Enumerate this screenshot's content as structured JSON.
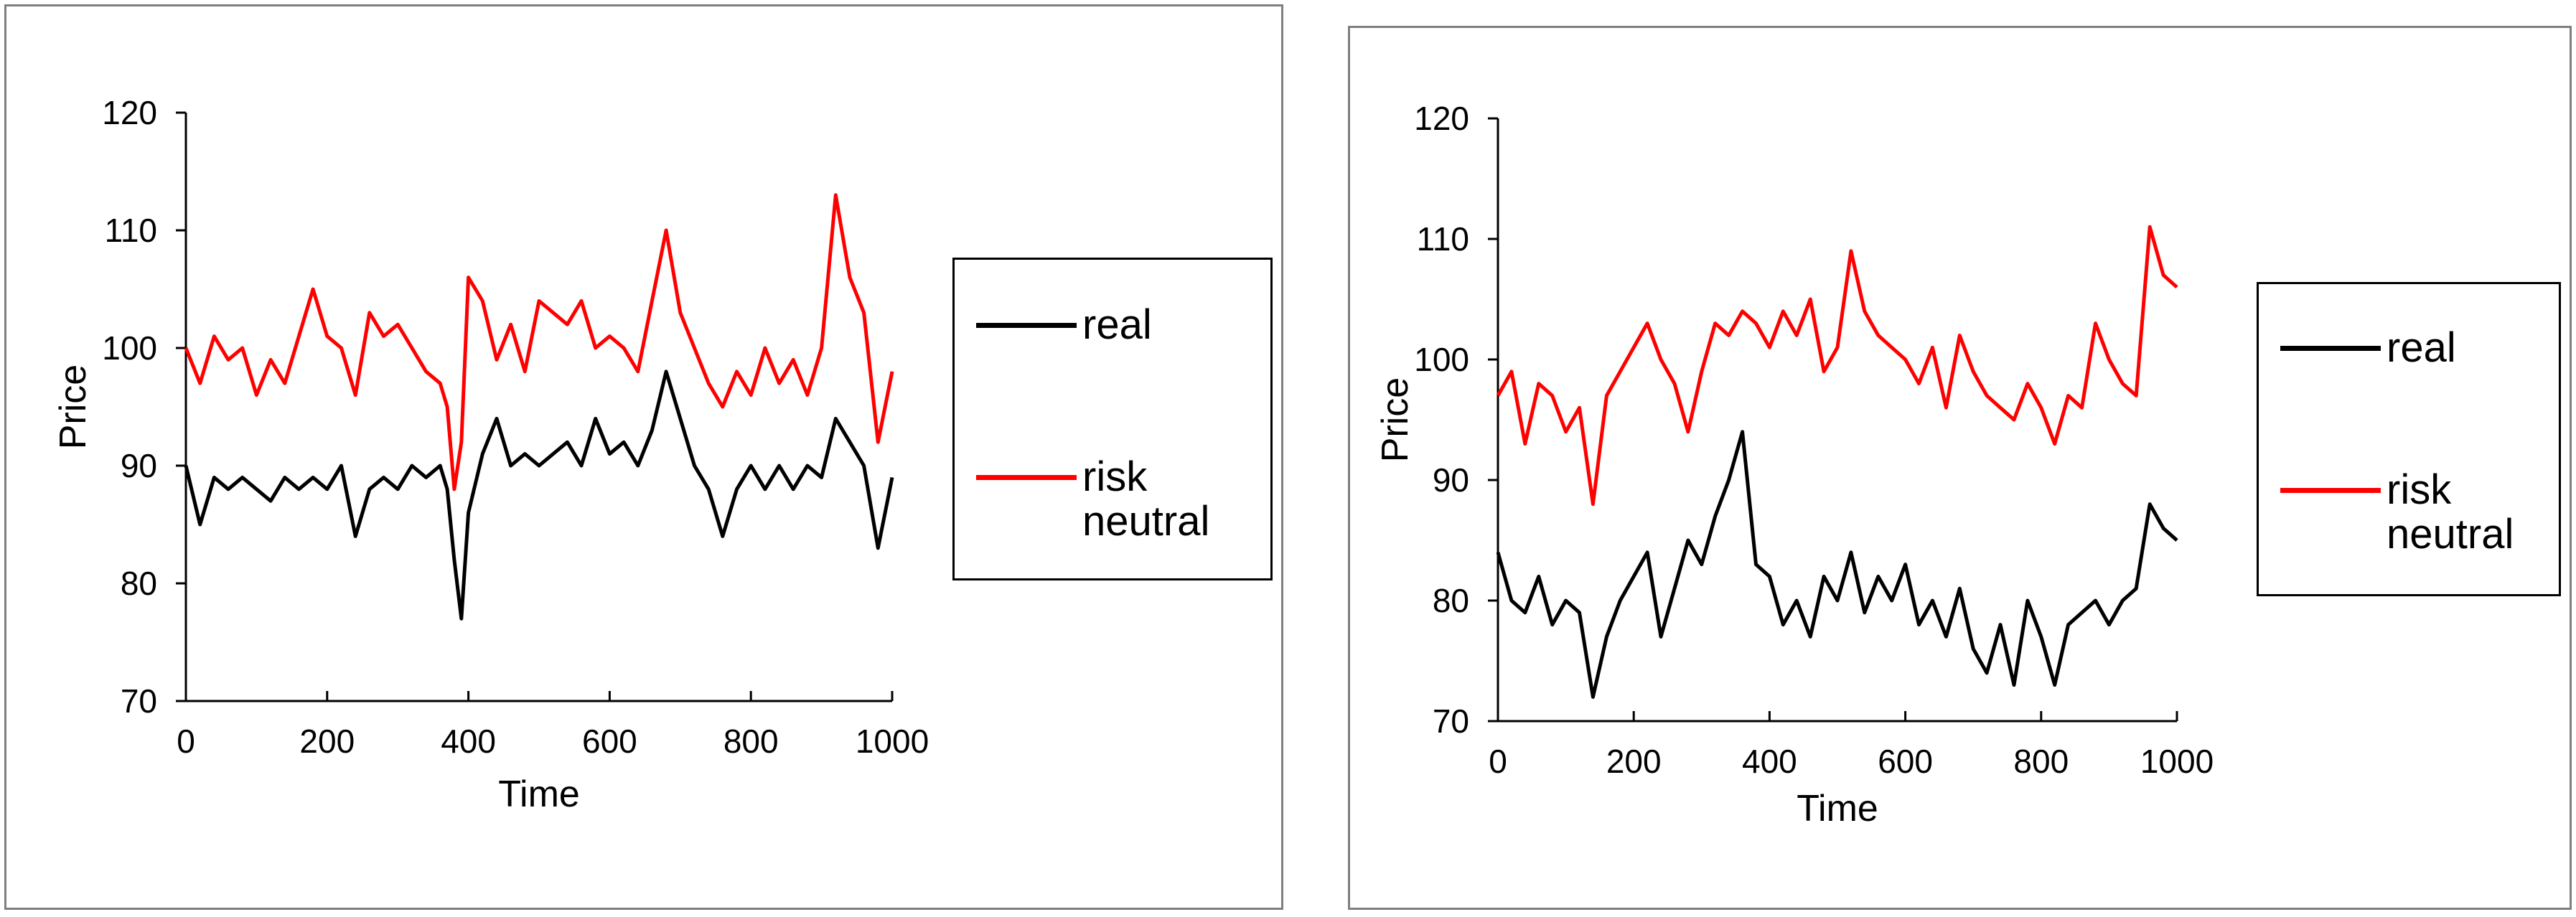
{
  "chart_data": [
    {
      "type": "line",
      "xlabel": "Time",
      "ylabel": "Price",
      "xlim": [
        0,
        1000
      ],
      "ylim": [
        70,
        120
      ],
      "x_ticks": [
        "0",
        "200",
        "400",
        "600",
        "800",
        "1000"
      ],
      "y_ticks": [
        "70",
        "80",
        "90",
        "100",
        "110",
        "120"
      ],
      "grid": false,
      "legend_position": "right",
      "series": [
        {
          "name": "real",
          "color": "#000000",
          "x": [
            0,
            20,
            40,
            60,
            80,
            100,
            120,
            140,
            160,
            180,
            200,
            220,
            240,
            260,
            280,
            300,
            320,
            340,
            360,
            370,
            380,
            390,
            400,
            420,
            440,
            460,
            480,
            500,
            520,
            540,
            560,
            580,
            600,
            620,
            640,
            660,
            680,
            700,
            720,
            740,
            760,
            780,
            800,
            820,
            840,
            860,
            880,
            900,
            920,
            940,
            960,
            980,
            1000
          ],
          "y": [
            90,
            85,
            89,
            88,
            89,
            88,
            87,
            89,
            88,
            89,
            88,
            90,
            84,
            88,
            89,
            88,
            90,
            89,
            90,
            88,
            82,
            77,
            86,
            91,
            94,
            90,
            91,
            90,
            91,
            92,
            90,
            94,
            91,
            92,
            90,
            93,
            98,
            94,
            90,
            88,
            84,
            88,
            90,
            88,
            90,
            88,
            90,
            89,
            94,
            92,
            90,
            83,
            89
          ]
        },
        {
          "name": "risk neutral",
          "color": "#ff0000",
          "x": [
            0,
            20,
            40,
            60,
            80,
            100,
            120,
            140,
            160,
            180,
            200,
            220,
            240,
            260,
            280,
            300,
            320,
            340,
            360,
            370,
            380,
            390,
            400,
            420,
            440,
            460,
            480,
            500,
            520,
            540,
            560,
            580,
            600,
            620,
            640,
            660,
            680,
            700,
            720,
            740,
            760,
            780,
            800,
            820,
            840,
            860,
            880,
            900,
            920,
            940,
            960,
            980,
            1000
          ],
          "y": [
            100,
            97,
            101,
            99,
            100,
            96,
            99,
            97,
            101,
            105,
            101,
            100,
            96,
            103,
            101,
            102,
            100,
            98,
            97,
            95,
            88,
            92,
            106,
            104,
            99,
            102,
            98,
            104,
            103,
            102,
            104,
            100,
            101,
            100,
            98,
            104,
            110,
            103,
            100,
            97,
            95,
            98,
            96,
            100,
            97,
            99,
            96,
            100,
            113,
            106,
            103,
            92,
            98
          ]
        }
      ]
    },
    {
      "type": "line",
      "xlabel": "Time",
      "ylabel": "Price",
      "xlim": [
        0,
        1000
      ],
      "ylim": [
        70,
        120
      ],
      "x_ticks": [
        "0",
        "200",
        "400",
        "600",
        "800",
        "1000"
      ],
      "y_ticks": [
        "70",
        "80",
        "90",
        "100",
        "110",
        "120"
      ],
      "grid": false,
      "legend_position": "right",
      "series": [
        {
          "name": "real",
          "color": "#000000",
          "x": [
            0,
            20,
            40,
            60,
            80,
            100,
            120,
            140,
            160,
            180,
            200,
            220,
            240,
            260,
            280,
            300,
            320,
            340,
            360,
            380,
            400,
            420,
            440,
            460,
            480,
            500,
            520,
            540,
            560,
            580,
            600,
            620,
            640,
            660,
            680,
            700,
            720,
            740,
            760,
            780,
            800,
            820,
            840,
            860,
            880,
            900,
            920,
            940,
            960,
            980,
            1000
          ],
          "y": [
            84,
            80,
            79,
            82,
            78,
            80,
            79,
            72,
            77,
            80,
            82,
            84,
            77,
            81,
            85,
            83,
            87,
            90,
            94,
            83,
            82,
            78,
            80,
            77,
            82,
            80,
            84,
            79,
            82,
            80,
            83,
            78,
            80,
            77,
            81,
            76,
            74,
            78,
            73,
            80,
            77,
            73,
            78,
            79,
            80,
            78,
            80,
            81,
            88,
            86,
            85
          ]
        },
        {
          "name": "risk neutral",
          "color": "#ff0000",
          "x": [
            0,
            20,
            40,
            60,
            80,
            100,
            120,
            140,
            160,
            180,
            200,
            220,
            240,
            260,
            280,
            300,
            320,
            340,
            360,
            380,
            400,
            420,
            440,
            460,
            480,
            500,
            520,
            540,
            560,
            580,
            600,
            620,
            640,
            660,
            680,
            700,
            720,
            740,
            760,
            780,
            800,
            820,
            840,
            860,
            880,
            900,
            920,
            940,
            960,
            980,
            1000
          ],
          "y": [
            97,
            99,
            93,
            98,
            97,
            94,
            96,
            88,
            97,
            99,
            101,
            103,
            100,
            98,
            94,
            99,
            103,
            102,
            104,
            103,
            101,
            104,
            102,
            105,
            99,
            101,
            109,
            104,
            102,
            101,
            100,
            98,
            101,
            96,
            102,
            99,
            97,
            96,
            95,
            98,
            96,
            93,
            97,
            96,
            103,
            100,
            98,
            97,
            111,
            107,
            106
          ]
        }
      ]
    }
  ]
}
